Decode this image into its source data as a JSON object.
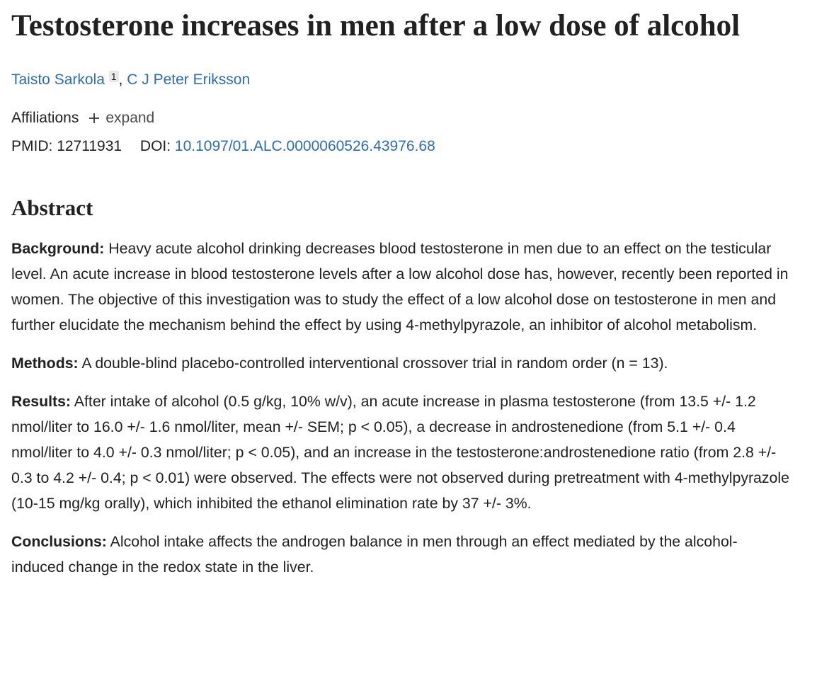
{
  "header": {
    "title": "Testosterone increases in men after a low dose of alcohol",
    "authors": [
      {
        "name": "Taisto Sarkola",
        "sup": "1"
      },
      {
        "name": "C J Peter Eriksson"
      }
    ],
    "author_separator": ",",
    "affiliations_label": "Affiliations",
    "expand_label": "expand",
    "pmid_label": "PMID:",
    "pmid": "12711931",
    "doi_label": "DOI:",
    "doi": "10.1097/01.ALC.0000060526.43976.68"
  },
  "abstract": {
    "heading": "Abstract",
    "sections": [
      {
        "label": "Background:",
        "text": "Heavy acute alcohol drinking decreases blood testosterone in men due to an effect on the testicular level. An acute increase in blood testosterone levels after a low alcohol dose has, however, recently been reported in women. The objective of this investigation was to study the effect of a low alcohol dose on testosterone in men and further elucidate the mechanism behind the effect by using 4-methylpyrazole, an inhibitor of alcohol metabolism."
      },
      {
        "label": "Methods:",
        "text": "A double-blind placebo-controlled interventional crossover trial in random order (n = 13)."
      },
      {
        "label": "Results:",
        "text": "After intake of alcohol (0.5 g/kg, 10% w/v), an acute increase in plasma testosterone (from 13.5 +/- 1.2 nmol/liter to 16.0 +/- 1.6 nmol/liter, mean +/- SEM; p < 0.05), a decrease in androstenedione (from 5.1 +/- 0.4 nmol/liter to 4.0 +/- 0.3 nmol/liter; p < 0.05), and an increase in the testosterone:androstenedione ratio (from 2.8 +/- 0.3 to 4.2 +/- 0.4; p < 0.01) were observed. The effects were not observed during pretreatment with 4-methylpyrazole (10-15 mg/kg orally), which inhibited the ethanol elimination rate by 37 +/- 3%."
      },
      {
        "label": "Conclusions:",
        "text": "Alcohol intake affects the androgen balance in men through an effect mediated by the alcohol-induced change in the redox state in the liver."
      }
    ]
  }
}
